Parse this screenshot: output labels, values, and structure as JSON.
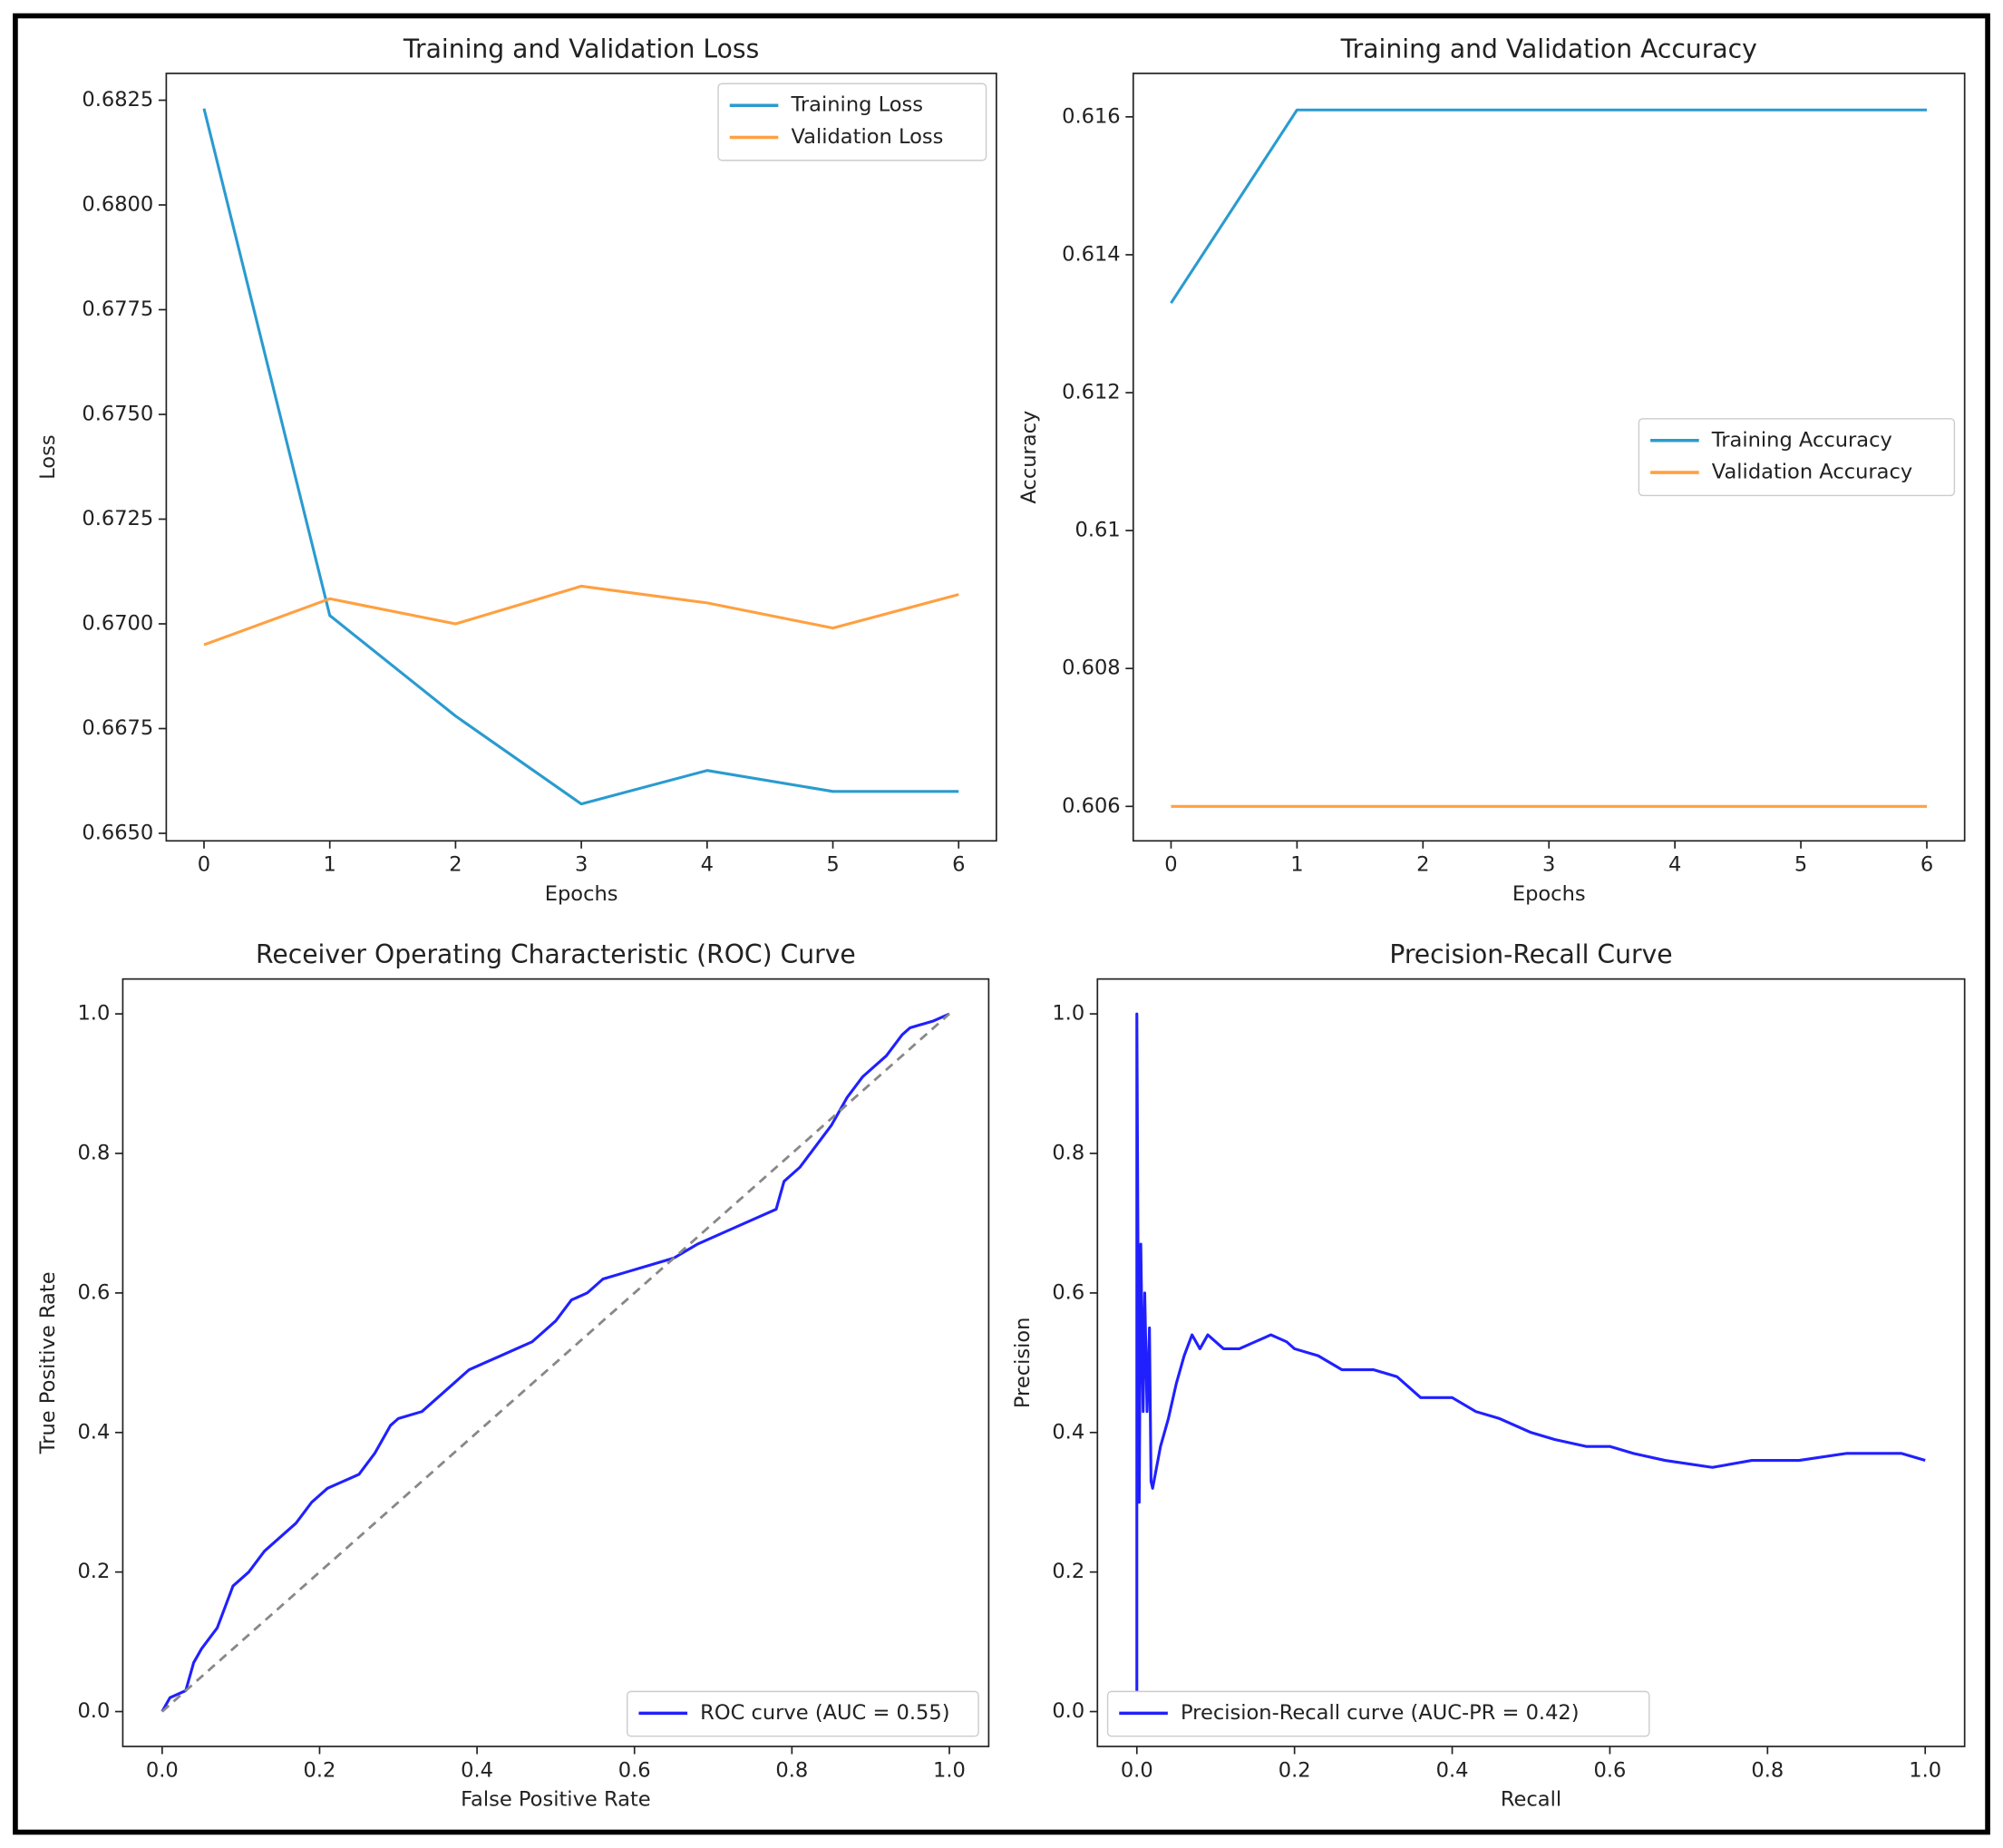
{
  "chart_data": [
    {
      "type": "line",
      "title": "Training and Validation Loss",
      "xlabel": "Epochs",
      "ylabel": "Loss",
      "x": [
        0,
        1,
        2,
        3,
        4,
        5,
        6
      ],
      "series": [
        {
          "name": "Training Loss",
          "color": "#2a9bd0",
          "values": [
            0.6823,
            0.6702,
            0.6678,
            0.6657,
            0.6665,
            0.666,
            0.666
          ]
        },
        {
          "name": "Validation Loss",
          "color": "#ffa040",
          "values": [
            0.6695,
            0.6706,
            0.67,
            0.6709,
            0.6705,
            0.6699,
            0.6707
          ]
        }
      ],
      "xlim": [
        -0.3,
        6.3
      ],
      "xticks": [
        0,
        1,
        2,
        3,
        4,
        5,
        6
      ],
      "ylim": [
        0.66482,
        0.68314
      ],
      "yticks": [
        {
          "value": 0.665,
          "label": "0.6650"
        },
        0.6675,
        {
          "value": 0.67,
          "label": "0.6700"
        },
        0.6725,
        {
          "value": 0.675,
          "label": "0.6750"
        },
        0.6775,
        {
          "value": 0.68,
          "label": "0.6800"
        },
        0.6825
      ],
      "legend": "upper right"
    },
    {
      "type": "line",
      "title": "Training and Validation Accuracy",
      "xlabel": "Epochs",
      "ylabel": "Accuracy",
      "x": [
        0,
        1,
        2,
        3,
        4,
        5,
        6
      ],
      "series": [
        {
          "name": "Training Accuracy",
          "color": "#2a9bd0",
          "values": [
            0.6133,
            0.6161,
            0.6161,
            0.6161,
            0.6161,
            0.6161,
            0.6161
          ]
        },
        {
          "name": "Validation Accuracy",
          "color": "#ffa040",
          "values": [
            0.606,
            0.606,
            0.606,
            0.606,
            0.606,
            0.606,
            0.606
          ]
        }
      ],
      "xlim": [
        -0.3,
        6.3
      ],
      "xticks": [
        0,
        1,
        2,
        3,
        4,
        5,
        6
      ],
      "ylim": [
        0.6055,
        0.61663
      ],
      "yticks": [
        0.606,
        0.608,
        0.61,
        0.612,
        0.614,
        0.616
      ],
      "legend": "center right"
    },
    {
      "type": "line",
      "title": "Receiver Operating Characteristic (ROC) Curve",
      "xlabel": "False Positive Rate",
      "ylabel": "True Positive Rate",
      "series": [
        {
          "name": "ROC curve (AUC = 0.55)",
          "color": "#2020ff",
          "x": [
            0,
            0.01,
            0.03,
            0.04,
            0.05,
            0.07,
            0.08,
            0.09,
            0.11,
            0.13,
            0.15,
            0.17,
            0.19,
            0.21,
            0.23,
            0.25,
            0.27,
            0.29,
            0.3,
            0.33,
            0.35,
            0.37,
            0.39,
            0.41,
            0.43,
            0.45,
            0.47,
            0.5,
            0.52,
            0.54,
            0.56,
            0.59,
            0.62,
            0.65,
            0.68,
            0.72,
            0.78,
            0.79,
            0.81,
            0.83,
            0.85,
            0.87,
            0.89,
            0.92,
            0.94,
            0.95,
            0.98,
            1.0
          ],
          "values": [
            0,
            0.02,
            0.03,
            0.07,
            0.09,
            0.12,
            0.15,
            0.18,
            0.2,
            0.23,
            0.25,
            0.27,
            0.3,
            0.32,
            0.33,
            0.34,
            0.37,
            0.41,
            0.42,
            0.43,
            0.45,
            0.47,
            0.49,
            0.5,
            0.51,
            0.52,
            0.53,
            0.56,
            0.59,
            0.6,
            0.62,
            0.63,
            0.64,
            0.65,
            0.67,
            0.69,
            0.72,
            0.76,
            0.78,
            0.81,
            0.84,
            0.88,
            0.91,
            0.94,
            0.97,
            0.98,
            0.99,
            1.0
          ]
        },
        {
          "color": "#888888",
          "dashed": true,
          "x": [
            0,
            1
          ],
          "values": [
            0,
            1
          ]
        }
      ],
      "xlim": [
        -0.05,
        1.05
      ],
      "ylim": [
        -0.05,
        1.05
      ],
      "xticks": [
        {
          "value": 0,
          "label": "0.0"
        },
        0.2,
        0.4,
        0.6,
        0.8,
        {
          "value": 1,
          "label": "1.0"
        }
      ],
      "yticks": [
        {
          "value": 0,
          "label": "0.0"
        },
        0.2,
        0.4,
        0.6,
        0.8,
        {
          "value": 1,
          "label": "1.0"
        }
      ],
      "legend": "lower right"
    },
    {
      "type": "line",
      "title": "Precision-Recall Curve",
      "xlabel": "Recall",
      "ylabel": "Precision",
      "series": [
        {
          "name": "Precision-Recall curve (AUC-PR = 0.42)",
          "color": "#2020ff",
          "x": [
            0,
            0,
            0.003,
            0.005,
            0.008,
            0.01,
            0.013,
            0.016,
            0.018,
            0.02,
            0.03,
            0.04,
            0.05,
            0.06,
            0.07,
            0.08,
            0.09,
            0.11,
            0.13,
            0.15,
            0.17,
            0.19,
            0.2,
            0.23,
            0.26,
            0.3,
            0.33,
            0.36,
            0.4,
            0.43,
            0.46,
            0.5,
            0.53,
            0.57,
            0.6,
            0.63,
            0.67,
            0.73,
            0.78,
            0.84,
            0.9,
            0.97,
            1.0
          ],
          "values": [
            0,
            1.0,
            0.3,
            0.67,
            0.43,
            0.6,
            0.43,
            0.55,
            0.33,
            0.32,
            0.38,
            0.42,
            0.47,
            0.51,
            0.54,
            0.52,
            0.54,
            0.52,
            0.52,
            0.53,
            0.54,
            0.53,
            0.52,
            0.51,
            0.49,
            0.49,
            0.48,
            0.45,
            0.45,
            0.43,
            0.42,
            0.4,
            0.39,
            0.38,
            0.38,
            0.37,
            0.36,
            0.35,
            0.36,
            0.36,
            0.37,
            0.37,
            0.36
          ]
        }
      ],
      "xlim": [
        -0.05,
        1.05
      ],
      "ylim": [
        -0.05,
        1.05
      ],
      "xticks": [
        {
          "value": 0,
          "label": "0.0"
        },
        0.2,
        0.4,
        0.6,
        0.8,
        {
          "value": 1,
          "label": "1.0"
        }
      ],
      "yticks": [
        {
          "value": 0,
          "label": "0.0"
        },
        0.2,
        0.4,
        0.6,
        0.8,
        {
          "value": 1,
          "label": "1.0"
        }
      ],
      "legend": "lower left"
    }
  ]
}
